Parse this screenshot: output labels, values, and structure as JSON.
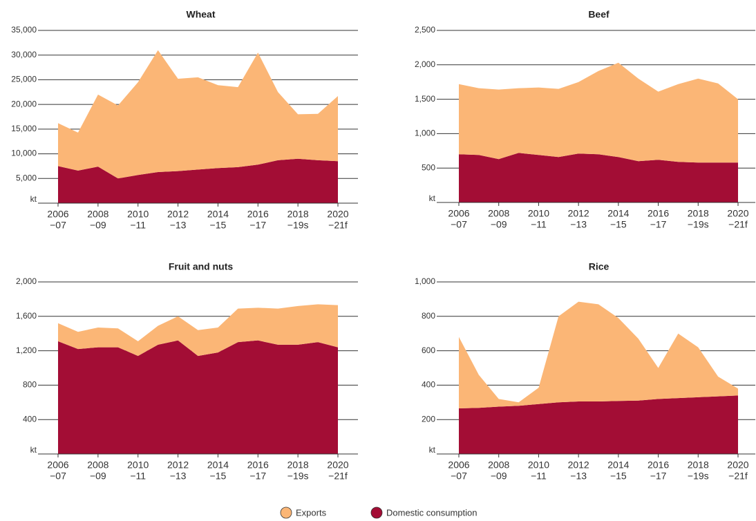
{
  "legend": [
    {
      "name": "Exports",
      "color": "#fbb676"
    },
    {
      "name": "Domestic consumption",
      "color": "#a30d35"
    }
  ],
  "chart_data": [
    {
      "type": "stacked_area",
      "title": "Wheat",
      "categories": [
        [
          "2006",
          "−07"
        ],
        null,
        [
          "2008",
          "−09"
        ],
        null,
        [
          "2010",
          "−11"
        ],
        null,
        [
          "2012",
          "−13"
        ],
        null,
        [
          "2014",
          "−15"
        ],
        null,
        [
          "2016",
          "−17"
        ],
        null,
        [
          "2018",
          "−19s"
        ],
        null,
        [
          "2020",
          "−21f"
        ]
      ],
      "series": [
        {
          "values": [
            8700,
            7700,
            14600,
            14800,
            18800,
            24700,
            18700,
            18700,
            16800,
            16200,
            22700,
            13800,
            9000,
            9400,
            13200
          ]
        },
        {
          "values": [
            7500,
            6600,
            7400,
            5000,
            5700,
            6300,
            6500,
            6800,
            7100,
            7300,
            7800,
            8700,
            9000,
            8700,
            8500
          ]
        }
      ],
      "ylim": [
        0,
        35000
      ],
      "yticks": [
        {
          "value": 0,
          "label": "kt"
        },
        {
          "value": 5000,
          "label": "5,000"
        },
        {
          "value": 10000,
          "label": "10,000"
        },
        {
          "value": 15000,
          "label": "15,000"
        },
        {
          "value": 20000,
          "label": "20,000"
        },
        {
          "value": 25000,
          "label": "25,000"
        },
        {
          "value": 30000,
          "label": "30,000"
        },
        {
          "value": 35000,
          "label": "35,000"
        }
      ],
      "grid": true
    },
    {
      "type": "stacked_area",
      "title": "Beef",
      "categories": [
        [
          "2006",
          "−07"
        ],
        null,
        [
          "2008",
          "−09"
        ],
        null,
        [
          "2010",
          "−11"
        ],
        null,
        [
          "2012",
          "−13"
        ],
        null,
        [
          "2014",
          "−15"
        ],
        null,
        [
          "2016",
          "−17"
        ],
        null,
        [
          "2018",
          "−19s"
        ],
        null,
        [
          "2020",
          "−21f"
        ]
      ],
      "series": [
        {
          "values": [
            1020,
            970,
            1010,
            940,
            980,
            990,
            1040,
            1210,
            1370,
            1200,
            990,
            1130,
            1220,
            1150,
            920
          ]
        },
        {
          "values": [
            700,
            690,
            630,
            720,
            690,
            660,
            710,
            700,
            660,
            600,
            620,
            590,
            580,
            580,
            580
          ]
        }
      ],
      "ylim": [
        0,
        2500
      ],
      "yticks": [
        {
          "value": 0,
          "label": "kt"
        },
        {
          "value": 500,
          "label": "500"
        },
        {
          "value": 1000,
          "label": "1,000"
        },
        {
          "value": 1500,
          "label": "1,500"
        },
        {
          "value": 2000,
          "label": "2,000"
        },
        {
          "value": 2500,
          "label": "2,500"
        }
      ],
      "grid": true
    },
    {
      "type": "stacked_area",
      "title": "Fruit and nuts",
      "categories": [
        [
          "2006",
          "−07"
        ],
        null,
        [
          "2008",
          "−09"
        ],
        null,
        [
          "2010",
          "−11"
        ],
        null,
        [
          "2012",
          "−13"
        ],
        null,
        [
          "2014",
          "−15"
        ],
        null,
        [
          "2016",
          "−17"
        ],
        null,
        [
          "2018",
          "−19s"
        ],
        null,
        [
          "2020",
          "−21f"
        ]
      ],
      "series": [
        {
          "values": [
            210,
            200,
            230,
            220,
            170,
            220,
            280,
            300,
            290,
            390,
            380,
            420,
            450,
            440,
            490
          ]
        },
        {
          "values": [
            1310,
            1220,
            1240,
            1240,
            1140,
            1270,
            1320,
            1140,
            1180,
            1300,
            1320,
            1270,
            1270,
            1300,
            1240
          ]
        }
      ],
      "ylim": [
        0,
        2000
      ],
      "yticks": [
        {
          "value": 0,
          "label": "kt"
        },
        400,
        800,
        {
          "value": 1200,
          "label": "1,200"
        },
        {
          "value": 1600,
          "label": "1,600"
        },
        {
          "value": 2000,
          "label": "2,000"
        }
      ],
      "grid": true
    },
    {
      "type": "stacked_area",
      "title": "Rice",
      "categories": [
        [
          "2006",
          "−07"
        ],
        null,
        [
          "2008",
          "−09"
        ],
        null,
        [
          "2010",
          "−11"
        ],
        null,
        [
          "2012",
          "−13"
        ],
        null,
        [
          "2014",
          "−15"
        ],
        null,
        [
          "2016",
          "−17"
        ],
        null,
        [
          "2018",
          "−19s"
        ],
        null,
        [
          "2020",
          "−21f"
        ]
      ],
      "series": [
        {
          "values": [
            415,
            192,
            45,
            20,
            95,
            500,
            580,
            565,
            482,
            360,
            180,
            375,
            290,
            115,
            40
          ]
        },
        {
          "values": [
            265,
            268,
            275,
            280,
            290,
            300,
            305,
            305,
            308,
            310,
            320,
            325,
            330,
            335,
            340
          ]
        }
      ],
      "ylim": [
        0,
        1000
      ],
      "yticks": [
        {
          "value": 0,
          "label": "kt"
        },
        200,
        400,
        600,
        800,
        {
          "value": 1000,
          "label": "1,000"
        }
      ],
      "grid": true
    }
  ]
}
